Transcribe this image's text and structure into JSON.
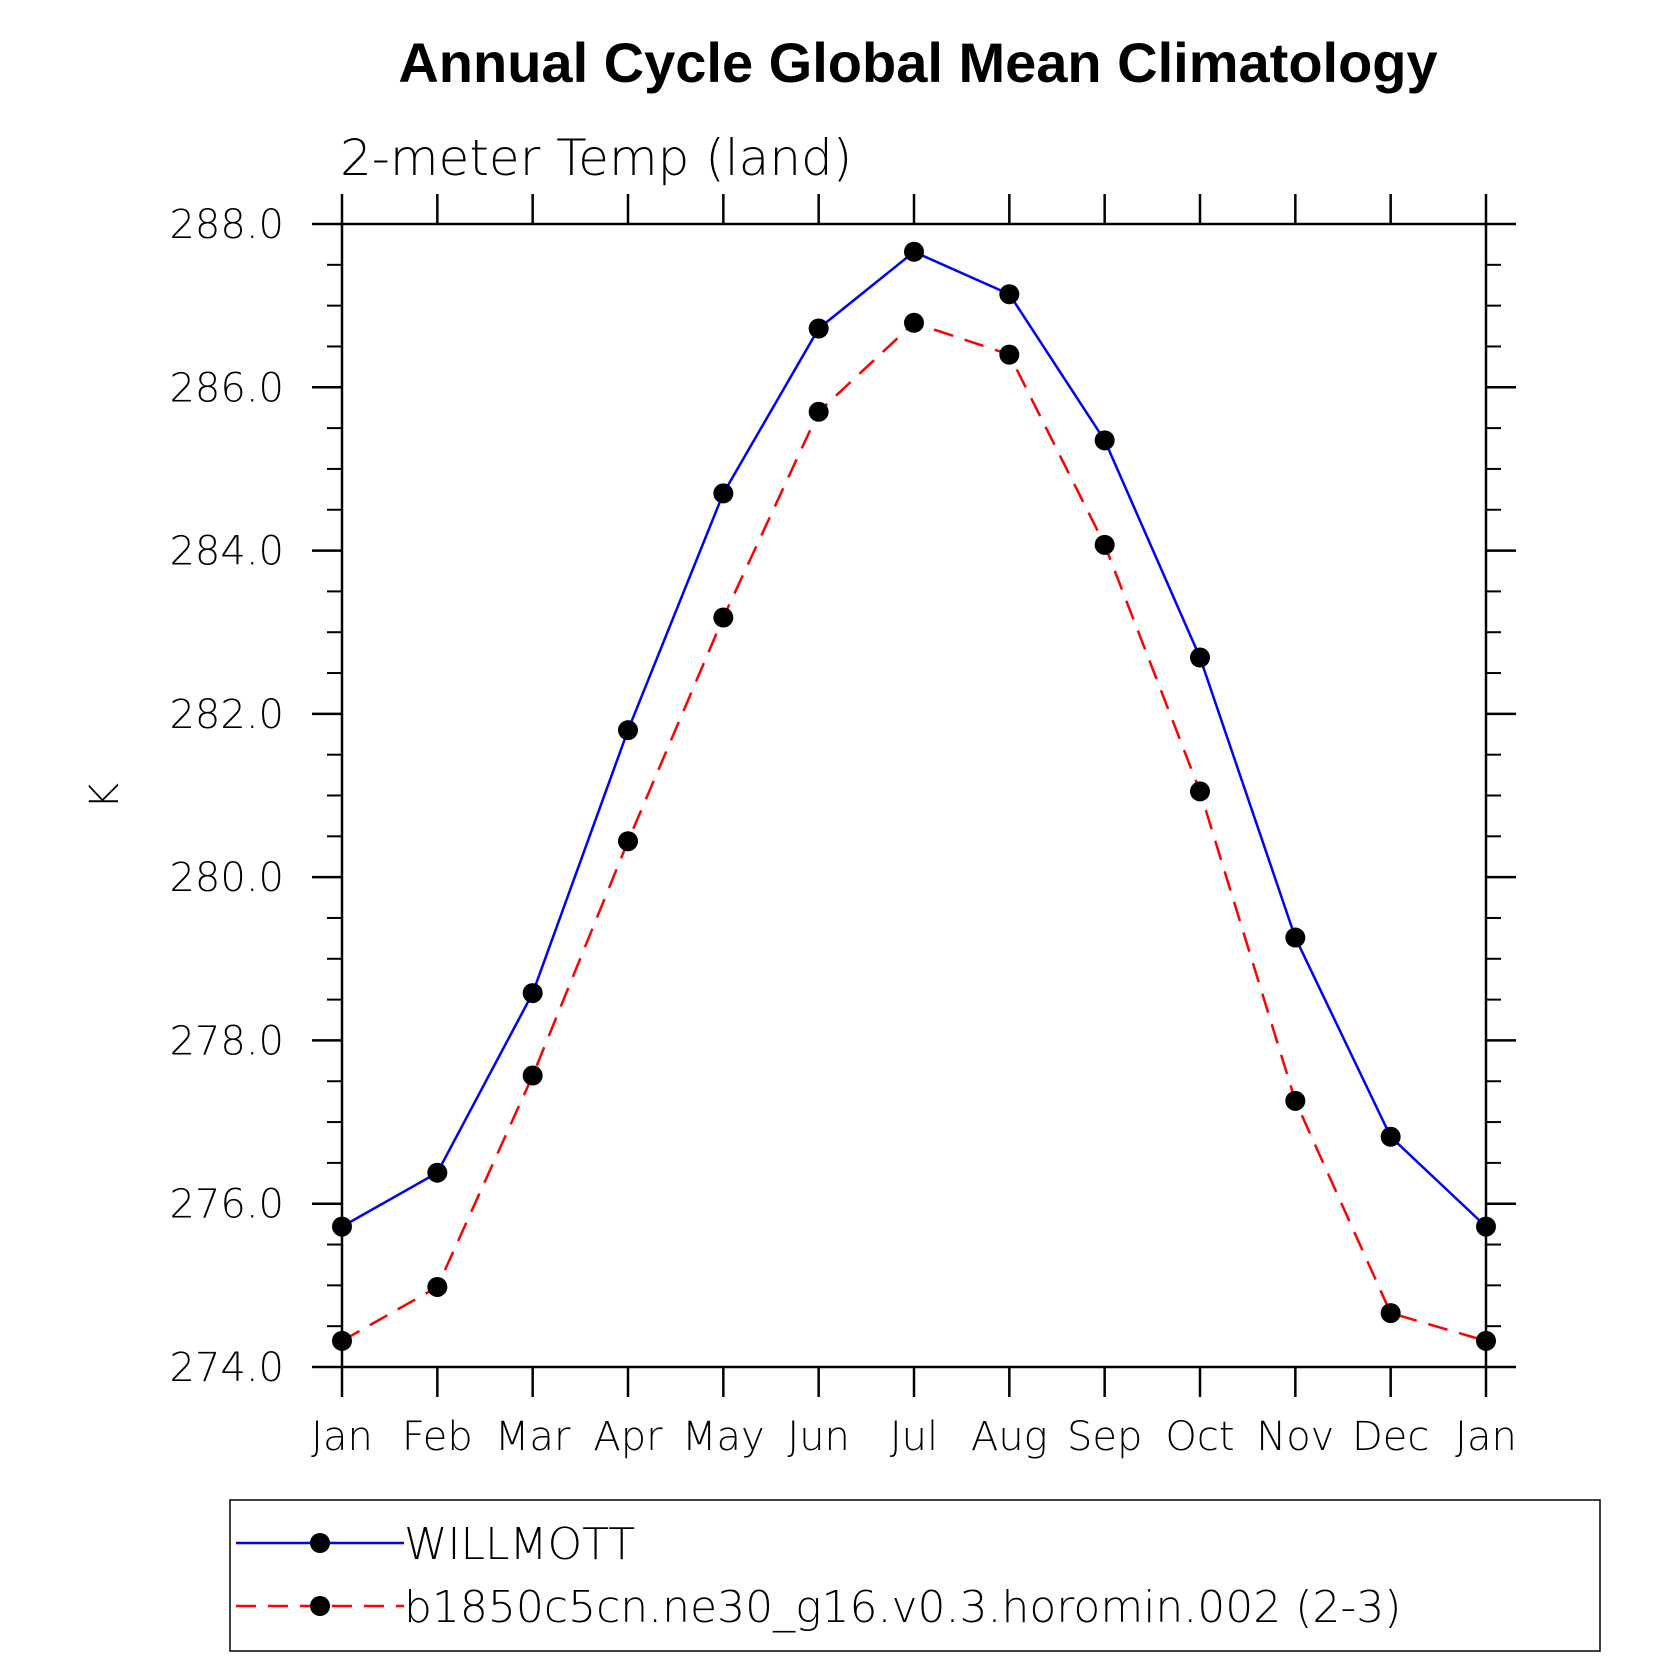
{
  "chart_data": {
    "type": "line",
    "title": "Annual Cycle Global Mean Climatology",
    "subtitle": "2-meter Temp (land)",
    "xlabel": "",
    "ylabel": "K",
    "categories": [
      "Jan",
      "Feb",
      "Mar",
      "Apr",
      "May",
      "Jun",
      "Jul",
      "Aug",
      "Sep",
      "Oct",
      "Nov",
      "Dec",
      "Jan"
    ],
    "ylim": [
      274.0,
      288.0
    ],
    "yticks": [
      "274.0",
      "276.0",
      "278.0",
      "280.0",
      "282.0",
      "284.0",
      "286.0",
      "288.0"
    ],
    "y_minor_step": 0.5,
    "grid": false,
    "legend_position": "bottom",
    "series": [
      {
        "name": "WILLMOTT",
        "color": "#0000ff",
        "dash": "solid",
        "marker": "filled-circle",
        "values": [
          275.72,
          276.38,
          278.58,
          281.8,
          284.7,
          286.72,
          287.66,
          287.14,
          285.35,
          282.69,
          279.26,
          276.82,
          275.72
        ]
      },
      {
        "name": "b1850c5cn.ne30_g16.v0.3.horomin.002 (2-3)",
        "color": "#ff0000",
        "dash": "dashed",
        "marker": "filled-circle",
        "values": [
          274.32,
          274.98,
          277.57,
          280.44,
          283.18,
          285.7,
          286.79,
          286.4,
          284.07,
          281.05,
          277.26,
          274.66,
          274.32
        ]
      }
    ]
  }
}
